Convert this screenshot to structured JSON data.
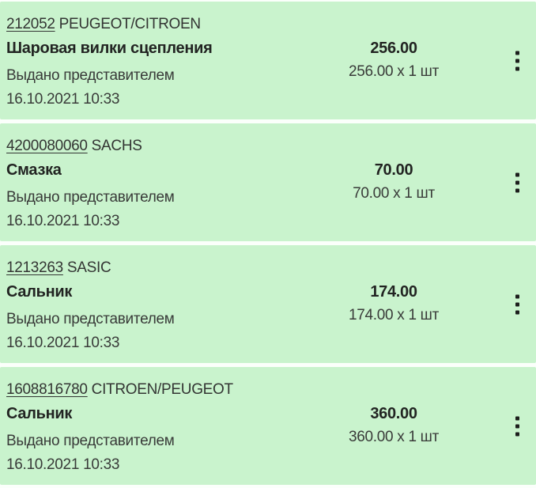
{
  "colors": {
    "card_background": "#c9f3cd",
    "page_background": "#fbfffb",
    "text_primary": "#333533",
    "text_bold": "#222422",
    "kebab_dot": "#1c1e1c"
  },
  "items": [
    {
      "part_number": "212052",
      "brand": "PEUGEOT/CITROEN",
      "name": "Шаровая вилки сцепления",
      "status": "Выдано представителем",
      "datetime": "16.10.2021 10:33",
      "price": "256.00",
      "price_detail": "256.00 x 1 шт",
      "kebab_icon": "kebab-menu-icon"
    },
    {
      "part_number": "4200080060",
      "brand": "SACHS",
      "name": "Смазка",
      "status": "Выдано представителем",
      "datetime": "16.10.2021 10:33",
      "price": "70.00",
      "price_detail": "70.00 x 1 шт",
      "kebab_icon": "kebab-menu-icon"
    },
    {
      "part_number": "1213263",
      "brand": "SASIC",
      "name": "Сальник",
      "status": "Выдано представителем",
      "datetime": "16.10.2021 10:33",
      "price": "174.00",
      "price_detail": "174.00 x 1 шт",
      "kebab_icon": "kebab-menu-icon"
    },
    {
      "part_number": "1608816780",
      "brand": "CITROEN/PEUGEOT",
      "name": "Сальник",
      "status": "Выдано представителем",
      "datetime": "16.10.2021 10:33",
      "price": "360.00",
      "price_detail": "360.00 x 1 шт",
      "kebab_icon": "kebab-menu-icon"
    }
  ]
}
